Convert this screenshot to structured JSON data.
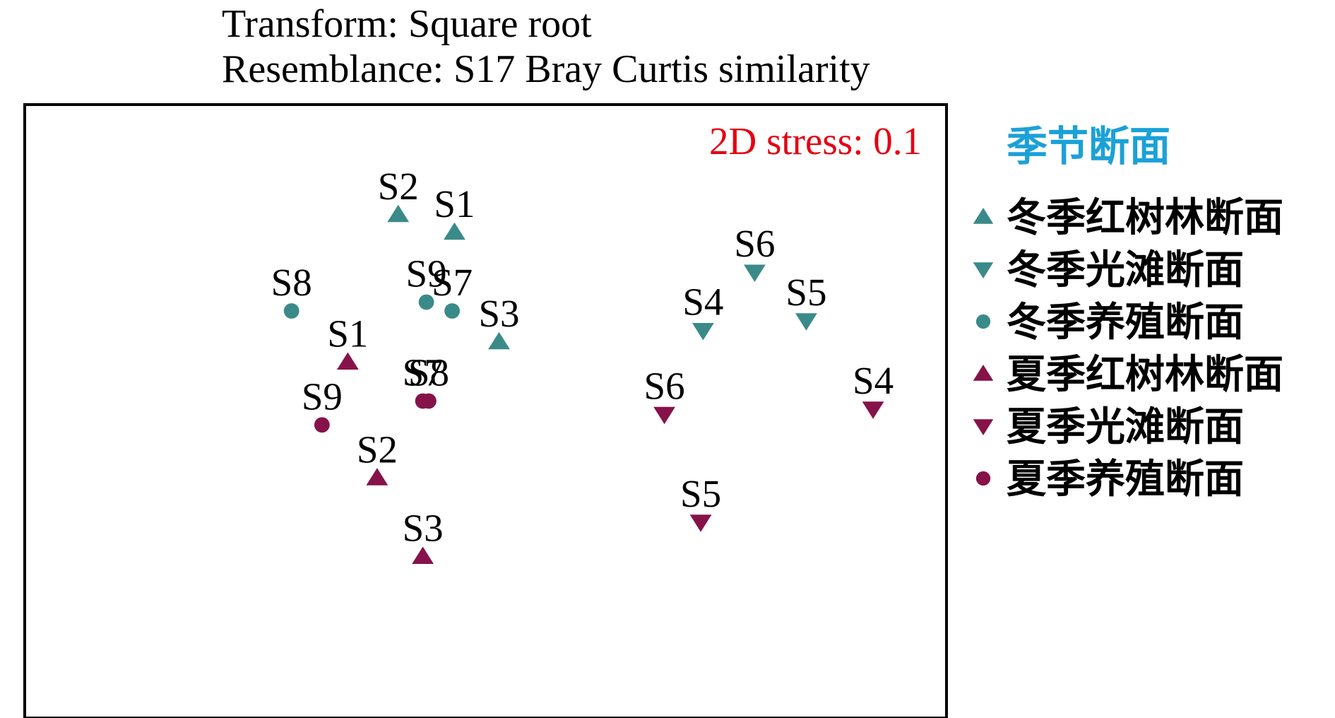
{
  "chart_data": {
    "type": "scatter",
    "title": "",
    "subtitles": [
      "Transform: Square root",
      "Resemblance: S17 Bray Curtis similarity"
    ],
    "annotation": "2D stress: 0.1",
    "axes": "none",
    "grid": false,
    "legend_placement": "right",
    "legend_title": "季节断面",
    "colors": {
      "winter": "#3b8a8a",
      "summer": "#86124a",
      "annotation": "#e60012",
      "legend_title": "#1ba1d7",
      "frame": "#000000"
    },
    "series": [
      {
        "name": "冬季红树林断面",
        "marker": "triangle-up",
        "color": "#3b8a8a",
        "points": [
          {
            "label": "S2",
            "x": -1.64,
            "y": 1.77
          },
          {
            "label": "S1",
            "x": -1.16,
            "y": 1.57
          },
          {
            "label": "S3",
            "x": -0.78,
            "y": 0.33
          }
        ]
      },
      {
        "name": "冬季光滩断面",
        "marker": "triangle-down",
        "color": "#3b8a8a",
        "points": [
          {
            "label": "S6",
            "x": 1.4,
            "y": 1.12
          },
          {
            "label": "S5",
            "x": 1.84,
            "y": 0.57
          },
          {
            "label": "S4",
            "x": 0.96,
            "y": 0.46
          }
        ]
      },
      {
        "name": "冬季养殖断面",
        "marker": "circle",
        "color": "#3b8a8a",
        "points": [
          {
            "label": "S8",
            "x": -2.55,
            "y": 0.68
          },
          {
            "label": "S9",
            "x": -1.4,
            "y": 0.78
          },
          {
            "label": "S7",
            "x": -1.18,
            "y": 0.68
          }
        ]
      },
      {
        "name": "夏季红树林断面",
        "marker": "triangle-up",
        "color": "#86124a",
        "points": [
          {
            "label": "S1",
            "x": -2.07,
            "y": 0.1
          },
          {
            "label": "S2",
            "x": -1.82,
            "y": -1.21
          },
          {
            "label": "S3",
            "x": -1.43,
            "y": -2.1
          }
        ]
      },
      {
        "name": "夏季光滩断面",
        "marker": "triangle-down",
        "color": "#86124a",
        "points": [
          {
            "label": "S6",
            "x": 0.63,
            "y": -0.49
          },
          {
            "label": "S4",
            "x": 2.41,
            "y": -0.43
          },
          {
            "label": "S5",
            "x": 0.94,
            "y": -1.71
          }
        ]
      },
      {
        "name": "夏季养殖断面",
        "marker": "circle",
        "color": "#86124a",
        "points": [
          {
            "label": "S7",
            "x": -1.43,
            "y": -0.34
          },
          {
            "label": "S8",
            "x": -1.38,
            "y": -0.34
          },
          {
            "label": "S9",
            "x": -2.29,
            "y": -0.61
          }
        ]
      }
    ]
  }
}
